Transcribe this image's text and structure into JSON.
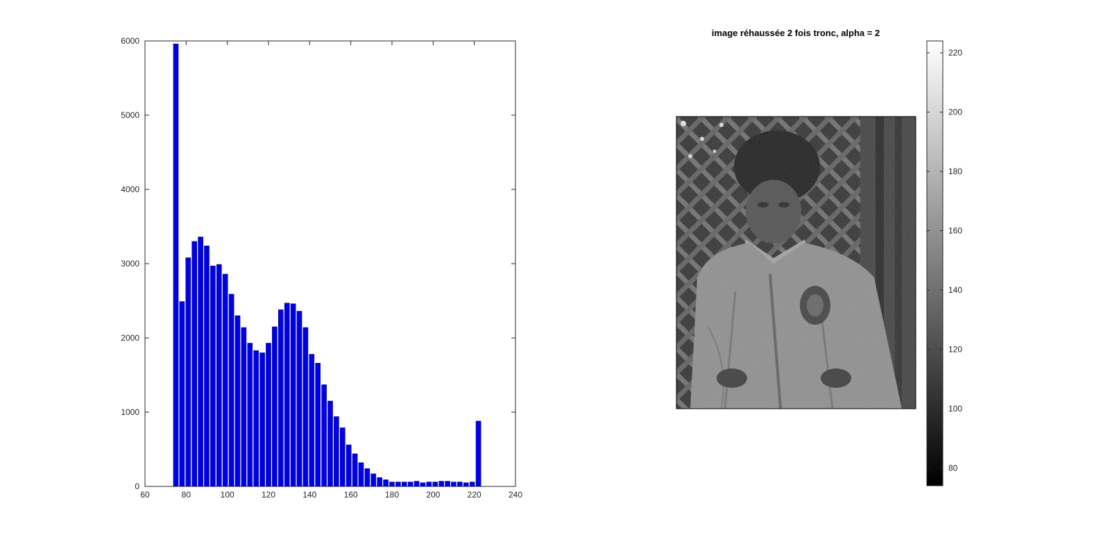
{
  "chart_data": [
    {
      "type": "bar",
      "title": "",
      "xlabel": "",
      "ylabel": "",
      "xlim": [
        60,
        240
      ],
      "ylim": [
        0,
        6000
      ],
      "xticks": [
        "60",
        "80",
        "100",
        "120",
        "140",
        "160",
        "180",
        "200",
        "220",
        "240"
      ],
      "yticks": [
        "0",
        "1000",
        "2000",
        "3000",
        "4000",
        "5000",
        "6000"
      ],
      "grid": false,
      "bar_color": "#0000e6",
      "x": [
        75,
        78,
        81,
        84,
        87,
        90,
        93,
        96,
        99,
        102,
        105,
        108,
        111,
        114,
        117,
        120,
        123,
        126,
        129,
        132,
        135,
        138,
        141,
        144,
        147,
        150,
        153,
        156,
        159,
        162,
        165,
        168,
        171,
        174,
        177,
        180,
        183,
        186,
        189,
        192,
        195,
        198,
        201,
        204,
        207,
        210,
        213,
        216,
        219,
        222
      ],
      "values": [
        5960,
        2490,
        3080,
        3300,
        3360,
        3240,
        2970,
        2990,
        2860,
        2590,
        2300,
        2140,
        1930,
        1830,
        1800,
        1930,
        2150,
        2380,
        2470,
        2460,
        2360,
        2140,
        1780,
        1660,
        1370,
        1150,
        940,
        790,
        560,
        440,
        320,
        240,
        170,
        120,
        90,
        60,
        60,
        60,
        60,
        70,
        50,
        60,
        60,
        70,
        70,
        60,
        60,
        50,
        60,
        880
      ]
    },
    {
      "type": "heatmap",
      "title": "image réhaussée 2 fois tronc, alpha = 2",
      "colormap": "gray",
      "clim": [
        74,
        224
      ],
      "colorbar_ticks": [
        "80",
        "100",
        "120",
        "140",
        "160",
        "180",
        "200",
        "220"
      ],
      "image_description": "grayscale photograph of a child in a jacket"
    }
  ]
}
